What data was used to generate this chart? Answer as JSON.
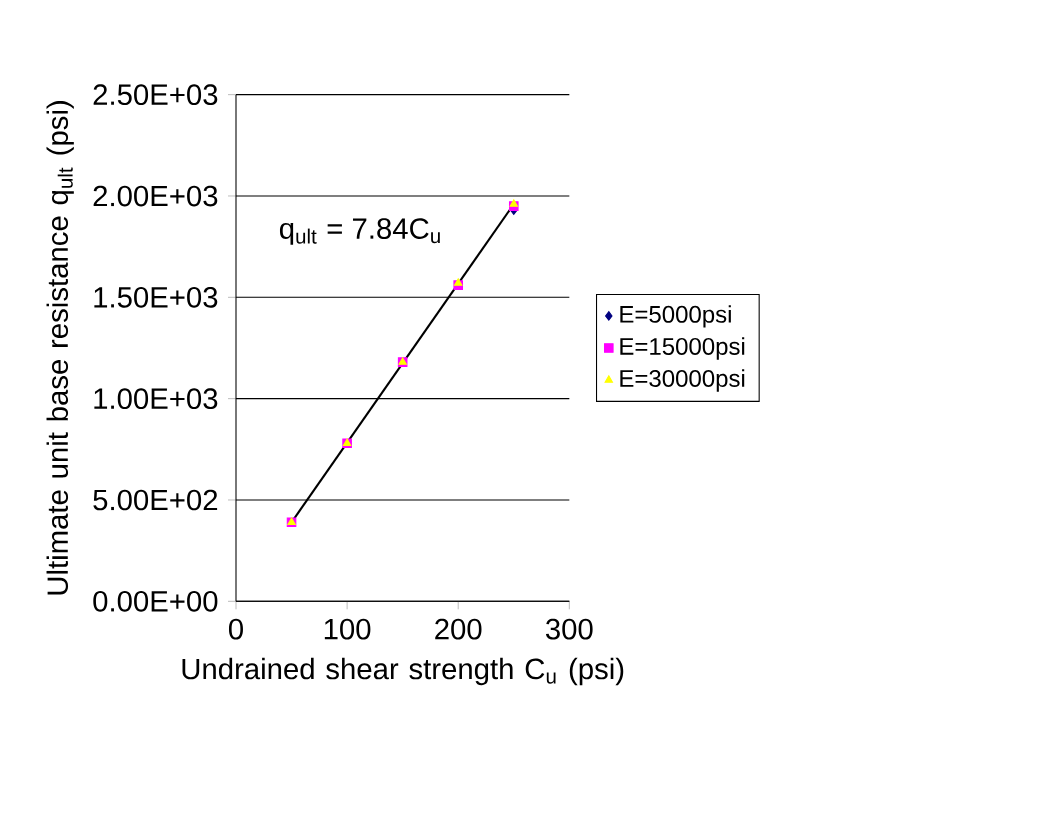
{
  "chart_data": {
    "type": "scatter",
    "xlabel": "Undrained shear strength C$_{u}$ (psi)",
    "ylabel": "Ultimate unit base resistance q$_{ult}$ (psi)",
    "x": [
      50,
      100,
      150,
      200,
      250
    ],
    "series": [
      {
        "name": "E=5000psi",
        "color": "#000080",
        "marker": "diamond",
        "values": [
          null,
          null,
          null,
          null,
          1930
        ]
      },
      {
        "name": "E=15000psi",
        "color": "#ff00ff",
        "marker": "square",
        "values": [
          390,
          780,
          1180,
          1560,
          1950
        ]
      },
      {
        "name": "E=30000psi",
        "color": "#ffff00",
        "marker": "triangle",
        "values": [
          390,
          780,
          1180,
          1570,
          1960
        ]
      },
      {
        "type": "line",
        "color": "#000000",
        "marker": "none",
        "x": [
          50,
          250
        ],
        "values": [
          390,
          1960
        ]
      }
    ],
    "annotations": [
      "q$_{ult}$ = 7.84C$_{u}$"
    ],
    "xlim": [
      0,
      300
    ],
    "xticks": [
      0,
      100,
      200,
      300
    ],
    "ylim": [
      0,
      2500
    ],
    "yticks": [
      {
        "value": 0,
        "label": "0.00E+00"
      },
      {
        "value": 500,
        "label": "5.00E+02"
      },
      {
        "value": 1000,
        "label": "1.00E+03"
      },
      {
        "value": 1500,
        "label": "1.50E+03"
      },
      {
        "value": 2000,
        "label": "2.00E+03"
      },
      {
        "value": 2500,
        "label": "2.50E+03"
      }
    ],
    "grid": "y",
    "legend": "right"
  }
}
